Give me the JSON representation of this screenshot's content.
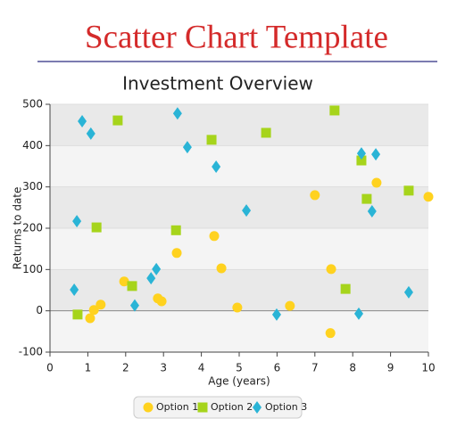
{
  "page_title": "Scatter Chart Template",
  "chart_data": {
    "type": "scatter",
    "title": "Investment Overview",
    "x_label": "Age (years)",
    "y_label": "Returns to date",
    "xlim": [
      0,
      10
    ],
    "xticks": [
      0,
      1,
      2,
      3,
      4,
      5,
      6,
      7,
      8,
      9,
      10
    ],
    "ylim": [
      -100,
      500
    ],
    "yticks": [
      -100,
      0,
      100,
      200,
      300,
      400,
      500
    ],
    "grid": true,
    "legend": "bottom",
    "series": [
      {
        "name": "Option 1",
        "color": "#ffd21f",
        "marker": "circle",
        "x": [
          1.06,
          1.16,
          1.34,
          1.96,
          2.85,
          2.95,
          3.35,
          4.34,
          4.53,
          4.95,
          6.34,
          7.0,
          7.43,
          7.41,
          8.63,
          10.0
        ],
        "values": [
          -18,
          2,
          15,
          71,
          30,
          23,
          140,
          181,
          103,
          8,
          12,
          280,
          101,
          -54,
          310,
          276
        ]
      },
      {
        "name": "Option 2",
        "color": "#a6d41b",
        "marker": "square",
        "x": [
          0.73,
          1.23,
          1.79,
          2.17,
          3.33,
          4.27,
          5.71,
          7.52,
          7.81,
          8.23,
          8.37,
          9.48
        ],
        "values": [
          -9,
          202,
          461,
          60,
          195,
          414,
          431,
          485,
          53,
          364,
          271,
          291
        ]
      },
      {
        "name": "Option 3",
        "color": "#2ab4d6",
        "marker": "diamond",
        "x": [
          0.64,
          0.71,
          0.85,
          1.08,
          2.24,
          2.67,
          2.81,
          3.37,
          3.63,
          4.39,
          5.19,
          5.99,
          8.16,
          8.23,
          8.51,
          8.61,
          9.48
        ],
        "values": [
          51,
          217,
          459,
          429,
          13,
          79,
          101,
          478,
          396,
          349,
          243,
          -9,
          -7,
          381,
          241,
          379,
          45
        ]
      }
    ]
  }
}
